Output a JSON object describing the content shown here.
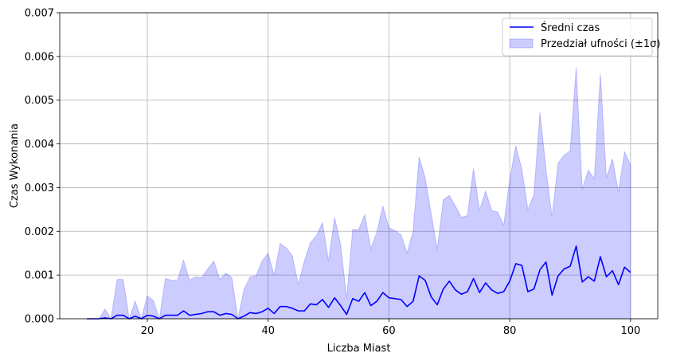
{
  "chart_data": {
    "type": "line",
    "title": "",
    "xlabel": "Liczba Miast",
    "ylabel": "Czas Wykonania",
    "xlim": [
      5.5,
      104.5
    ],
    "ylim": [
      0,
      0.007
    ],
    "x_ticks": [
      20,
      40,
      60,
      80,
      100
    ],
    "x_tick_labels": [
      "20",
      "40",
      "60",
      "80",
      "100"
    ],
    "y_ticks": [
      0,
      0.001,
      0.002,
      0.003,
      0.004,
      0.005,
      0.006,
      0.007
    ],
    "y_tick_labels": [
      "0.000",
      "0.001",
      "0.002",
      "0.003",
      "0.004",
      "0.005",
      "0.006",
      "0.007"
    ],
    "grid": true,
    "legend_position": "top-right",
    "x": [
      10,
      11,
      12,
      13,
      14,
      15,
      16,
      17,
      18,
      19,
      20,
      21,
      22,
      23,
      24,
      25,
      26,
      27,
      28,
      29,
      30,
      31,
      32,
      33,
      34,
      35,
      36,
      37,
      38,
      39,
      40,
      41,
      42,
      43,
      44,
      45,
      46,
      47,
      48,
      49,
      50,
      51,
      52,
      53,
      54,
      55,
      56,
      57,
      58,
      59,
      60,
      61,
      62,
      63,
      64,
      65,
      66,
      67,
      68,
      69,
      70,
      71,
      72,
      73,
      74,
      75,
      76,
      77,
      78,
      79,
      80,
      81,
      82,
      83,
      84,
      85,
      86,
      87,
      88,
      89,
      90,
      91,
      92,
      93,
      94,
      95,
      96,
      97,
      98,
      99,
      100
    ],
    "series": [
      {
        "name": "Średni czas",
        "color": "#0000ff",
        "values": [
          0.0,
          0.0,
          0.0,
          2e-05,
          0.0,
          8e-05,
          8e-05,
          0.0,
          6e-05,
          0.0,
          8e-05,
          6e-05,
          0.0,
          8e-05,
          8e-05,
          8e-05,
          0.00018,
          8e-05,
          0.0001,
          0.00012,
          0.00016,
          0.00016,
          8e-05,
          0.00012,
          0.0001,
          0.0,
          6e-05,
          0.00014,
          0.00012,
          0.00016,
          0.00024,
          0.00012,
          0.00028,
          0.00028,
          0.00024,
          0.00018,
          0.00018,
          0.00034,
          0.00032,
          0.00044,
          0.00026,
          0.00048,
          0.0003,
          0.0001,
          0.00046,
          0.0004,
          0.0006,
          0.0003,
          0.0004,
          0.0006,
          0.00048,
          0.00046,
          0.00044,
          0.00028,
          0.0004,
          0.00098,
          0.00088,
          0.0005,
          0.00032,
          0.00068,
          0.00086,
          0.00066,
          0.00056,
          0.00062,
          0.00092,
          0.0006,
          0.00082,
          0.00066,
          0.00058,
          0.00062,
          0.00086,
          0.00126,
          0.00122,
          0.00062,
          0.00068,
          0.00112,
          0.0013,
          0.00054,
          0.00098,
          0.00114,
          0.0012,
          0.00166,
          0.00084,
          0.00096,
          0.00086,
          0.00142,
          0.00096,
          0.0011,
          0.00078,
          0.00118,
          0.00106
        ]
      },
      {
        "name": "Przedział ufności (±1σ)",
        "color": "#b3b3ff",
        "lower": [
          0,
          0,
          0,
          0,
          0,
          0,
          0,
          0,
          0,
          0,
          0,
          0,
          0,
          0,
          0,
          0,
          0,
          0,
          0,
          0,
          0,
          0,
          0,
          0,
          0,
          0,
          0,
          0,
          0,
          0,
          0,
          0,
          0,
          0,
          0,
          0,
          0,
          0,
          0,
          0,
          0,
          0,
          0,
          0,
          0,
          0,
          0,
          0,
          0,
          0,
          0,
          0,
          0,
          0,
          0,
          0,
          0,
          0,
          0,
          0,
          0,
          0,
          0,
          0,
          0,
          0,
          0,
          0,
          0,
          0,
          0,
          0,
          0,
          0,
          0,
          0,
          0,
          0,
          0,
          0,
          0,
          0,
          0,
          0,
          0,
          0,
          0,
          0,
          0,
          0,
          0
        ],
        "upper": [
          0.0,
          0.0,
          0.0,
          0.00022,
          0.0,
          0.0009,
          0.0009,
          0.0,
          0.0004,
          0.0,
          0.00052,
          0.00042,
          0.0,
          0.00092,
          0.00088,
          0.00088,
          0.00134,
          0.00088,
          0.00096,
          0.00094,
          0.00114,
          0.00132,
          0.0009,
          0.00104,
          0.00094,
          0.0,
          0.00066,
          0.00096,
          0.00098,
          0.00132,
          0.0015,
          0.001,
          0.00172,
          0.00162,
          0.00144,
          0.00078,
          0.00132,
          0.00174,
          0.0019,
          0.0022,
          0.00132,
          0.00232,
          0.0017,
          0.00046,
          0.00204,
          0.00204,
          0.00238,
          0.0016,
          0.00198,
          0.00258,
          0.00208,
          0.00202,
          0.00192,
          0.0015,
          0.002,
          0.0037,
          0.00322,
          0.0024,
          0.00158,
          0.00272,
          0.00282,
          0.00258,
          0.00232,
          0.00236,
          0.00344,
          0.00248,
          0.00292,
          0.00248,
          0.00244,
          0.00214,
          0.00318,
          0.00396,
          0.00342,
          0.0025,
          0.00284,
          0.00472,
          0.00342,
          0.00232,
          0.00356,
          0.00374,
          0.00384,
          0.00574,
          0.00296,
          0.0034,
          0.0032,
          0.0056,
          0.00322,
          0.00366,
          0.0029,
          0.00382,
          0.00352
        ]
      }
    ]
  }
}
